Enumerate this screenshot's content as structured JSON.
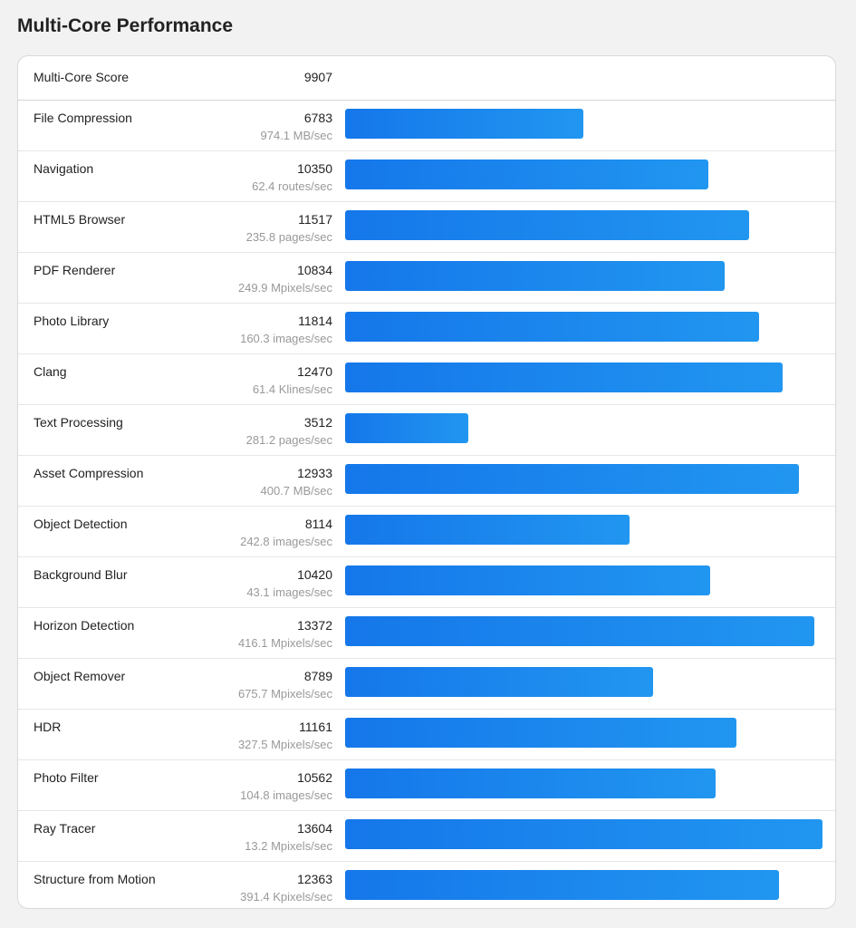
{
  "title": "Multi-Core Performance",
  "score": {
    "label": "Multi-Core Score",
    "value": "9907"
  },
  "chart_data": {
    "type": "bar",
    "orientation": "horizontal",
    "categories": [
      "File Compression",
      "Navigation",
      "HTML5 Browser",
      "PDF Renderer",
      "Photo Library",
      "Clang",
      "Text Processing",
      "Asset Compression",
      "Object Detection",
      "Background Blur",
      "Horizon Detection",
      "Object Remover",
      "HDR",
      "Photo Filter",
      "Ray Tracer",
      "Structure from Motion"
    ],
    "values": [
      6783,
      10350,
      11517,
      10834,
      11814,
      12470,
      3512,
      12933,
      8114,
      10420,
      13372,
      8789,
      11161,
      10562,
      13604,
      12363
    ],
    "units": [
      "974.1 MB/sec",
      "62.4 routes/sec",
      "235.8 pages/sec",
      "249.9 Mpixels/sec",
      "160.3 images/sec",
      "61.4 Klines/sec",
      "281.2 pages/sec",
      "400.7 MB/sec",
      "242.8 images/sec",
      "43.1 images/sec",
      "416.1 Mpixels/sec",
      "675.7 Mpixels/sec",
      "327.5 Mpixels/sec",
      "104.8 images/sec",
      "13.2 Mpixels/sec",
      "391.4 Kpixels/sec"
    ],
    "bar_color": "#1a85ee",
    "grid": false
  }
}
